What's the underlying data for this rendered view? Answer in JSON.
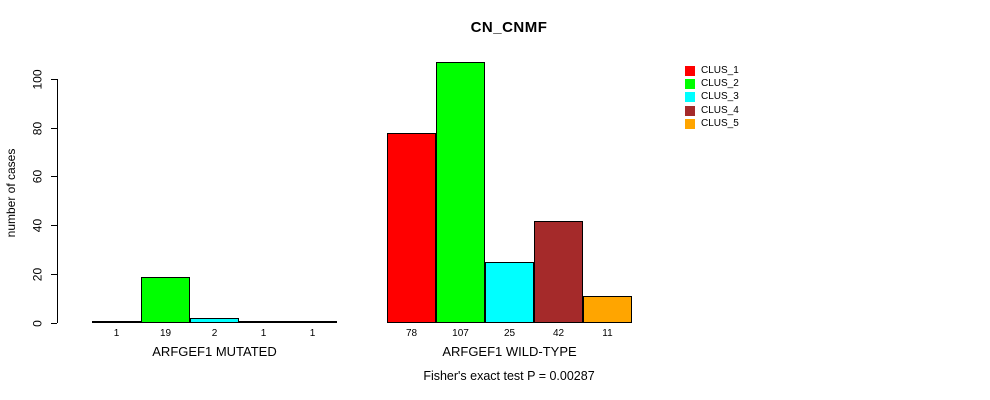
{
  "title": "CN_CNMF",
  "footnote": "Fisher's exact test P = 0.00287",
  "colors": {
    "background": "#FFFFFF",
    "axis": "#000000",
    "text": "#000000"
  },
  "chart_data": {
    "type": "bar",
    "title": "CN_CNMF",
    "xlabel": "",
    "ylabel": "number of cases",
    "yticks": [
      0,
      20,
      40,
      60,
      80,
      100
    ],
    "ylim": [
      0,
      107
    ],
    "grid": false,
    "legend_position": "right",
    "series": [
      {
        "name": "CLUS_1",
        "color": "#FF0000"
      },
      {
        "name": "CLUS_2",
        "color": "#00FF00"
      },
      {
        "name": "CLUS_3",
        "color": "#00FFFF"
      },
      {
        "name": "CLUS_4",
        "color": "#A52A2A"
      },
      {
        "name": "CLUS_5",
        "color": "#FFA500"
      }
    ],
    "groups": [
      {
        "label": "ARFGEF1 MUTATED",
        "values": [
          1,
          19,
          2,
          1,
          1
        ]
      },
      {
        "label": "ARFGEF1 WILD-TYPE",
        "values": [
          78,
          107,
          25,
          42,
          11
        ]
      }
    ],
    "annotation": "Fisher's exact test P = 0.00287"
  }
}
